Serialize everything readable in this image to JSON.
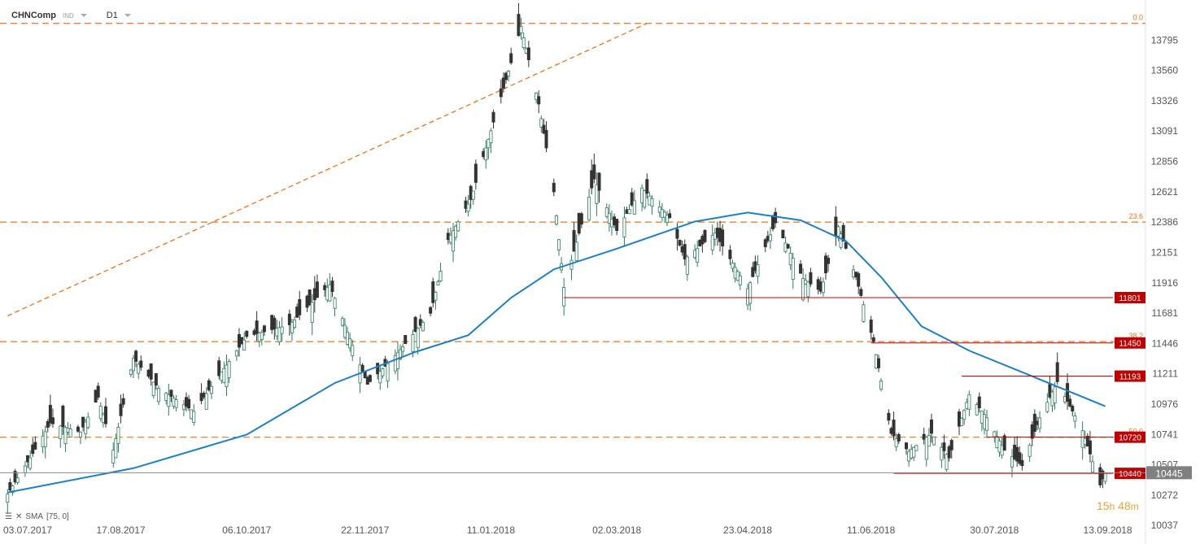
{
  "header": {
    "symbol": "CHNComp",
    "badge": "IND",
    "timeframe": "D1"
  },
  "indicator_legend": {
    "name": "SMA",
    "params": "[75, 0]"
  },
  "timer": {
    "hours": "15",
    "h_unit": "h",
    "minutes": "48",
    "m_unit": "m"
  },
  "colors": {
    "up_candle": "#2e7d5b",
    "down_candle": "#333333",
    "sma": "#1e7fc4",
    "fib": "#e8731f",
    "level_line": "#c00000",
    "level_label_bg": "#c00000",
    "price_label_bg": "#808080"
  },
  "chart_data": {
    "type": "candlestick",
    "title": "CHNComp",
    "timeframe": "D1",
    "ylim": [
      10000,
      13980
    ],
    "y_ticks": [
      13795,
      13560,
      13326,
      13091,
      12856,
      12621,
      12386,
      12151,
      11916,
      11681,
      11446,
      11211,
      10976,
      10741,
      10507,
      10272,
      10037
    ],
    "x_ticks": [
      "03.07.2017",
      "17.08.2017",
      "06.10.2017",
      "22.11.2017",
      "11.01.2018",
      "02.03.2018",
      "23.04.2018",
      "11.06.2018",
      "30.07.2018",
      "13.09.2018"
    ],
    "current_price": 10445,
    "candle_path": [
      {
        "x": "2017-07-03",
        "y": 10280
      },
      {
        "x": "2017-07-12",
        "y": 10560
      },
      {
        "x": "2017-07-20",
        "y": 10830
      },
      {
        "x": "2017-08-01",
        "y": 10760
      },
      {
        "x": "2017-08-08",
        "y": 11030
      },
      {
        "x": "2017-08-14",
        "y": 10620
      },
      {
        "x": "2017-08-22",
        "y": 11330
      },
      {
        "x": "2017-09-01",
        "y": 11100
      },
      {
        "x": "2017-09-15",
        "y": 10920
      },
      {
        "x": "2017-10-06",
        "y": 11500
      },
      {
        "x": "2017-10-23",
        "y": 11590
      },
      {
        "x": "2017-11-08",
        "y": 11900
      },
      {
        "x": "2017-11-17",
        "y": 11430
      },
      {
        "x": "2017-11-23",
        "y": 11130
      },
      {
        "x": "2017-12-04",
        "y": 11350
      },
      {
        "x": "2017-12-18",
        "y": 11680
      },
      {
        "x": "2017-12-25",
        "y": 12250
      },
      {
        "x": "2018-01-03",
        "y": 12560
      },
      {
        "x": "2018-01-12",
        "y": 13160
      },
      {
        "x": "2018-01-19",
        "y": 13620
      },
      {
        "x": "2018-01-23",
        "y": 13900
      },
      {
        "x": "2018-01-30",
        "y": 13300
      },
      {
        "x": "2018-02-05",
        "y": 12620
      },
      {
        "x": "2018-02-09",
        "y": 11880
      },
      {
        "x": "2018-02-21",
        "y": 12720
      },
      {
        "x": "2018-03-02",
        "y": 12320
      },
      {
        "x": "2018-03-12",
        "y": 12650
      },
      {
        "x": "2018-03-23",
        "y": 12420
      },
      {
        "x": "2018-03-29",
        "y": 12100
      },
      {
        "x": "2018-04-10",
        "y": 12300
      },
      {
        "x": "2018-04-23",
        "y": 11870
      },
      {
        "x": "2018-05-04",
        "y": 12380
      },
      {
        "x": "2018-05-15",
        "y": 11950
      },
      {
        "x": "2018-05-22",
        "y": 11850
      },
      {
        "x": "2018-05-29",
        "y": 12350
      },
      {
        "x": "2018-06-05",
        "y": 11960
      },
      {
        "x": "2018-06-12",
        "y": 11460
      },
      {
        "x": "2018-06-19",
        "y": 10750
      },
      {
        "x": "2018-06-26",
        "y": 10610
      },
      {
        "x": "2018-07-05",
        "y": 10750
      },
      {
        "x": "2018-07-12",
        "y": 10560
      },
      {
        "x": "2018-07-20",
        "y": 11050
      },
      {
        "x": "2018-07-27",
        "y": 10870
      },
      {
        "x": "2018-08-03",
        "y": 10620
      },
      {
        "x": "2018-08-10",
        "y": 10500
      },
      {
        "x": "2018-08-17",
        "y": 10870
      },
      {
        "x": "2018-08-24",
        "y": 11150
      },
      {
        "x": "2018-09-03",
        "y": 10770
      },
      {
        "x": "2018-09-10",
        "y": 10350
      },
      {
        "x": "2018-09-12",
        "y": 10445
      }
    ],
    "sma_75": [
      {
        "x": "2017-07-03",
        "y": 10292
      },
      {
        "x": "2017-08-22",
        "y": 10480
      },
      {
        "x": "2017-10-06",
        "y": 10740
      },
      {
        "x": "2017-11-10",
        "y": 11140
      },
      {
        "x": "2017-12-12",
        "y": 11380
      },
      {
        "x": "2018-01-02",
        "y": 11510
      },
      {
        "x": "2018-01-19",
        "y": 11800
      },
      {
        "x": "2018-02-05",
        "y": 12020
      },
      {
        "x": "2018-03-02",
        "y": 12180
      },
      {
        "x": "2018-04-02",
        "y": 12390
      },
      {
        "x": "2018-04-23",
        "y": 12460
      },
      {
        "x": "2018-05-14",
        "y": 12400
      },
      {
        "x": "2018-06-01",
        "y": 12240
      },
      {
        "x": "2018-06-15",
        "y": 11960
      },
      {
        "x": "2018-07-01",
        "y": 11580
      },
      {
        "x": "2018-07-20",
        "y": 11390
      },
      {
        "x": "2018-08-13",
        "y": 11200
      },
      {
        "x": "2018-09-12",
        "y": 10960
      }
    ],
    "fibonacci": [
      {
        "level": "0.0",
        "price": 13925
      },
      {
        "level": "23.6",
        "price": 12386
      },
      {
        "level": "38.2",
        "price": 11460
      },
      {
        "level": "50.0",
        "price": 10720
      }
    ],
    "fib_trendline": [
      {
        "x": "2017-07-03",
        "y": 11660
      },
      {
        "x": "2018-03-14",
        "y": 13925
      }
    ],
    "horizontal_levels": [
      {
        "label": "11801",
        "price": 11801,
        "from": "2018-02-09"
      },
      {
        "label": "11450",
        "price": 11450,
        "from": "2018-06-11"
      },
      {
        "label": "11193",
        "price": 11193,
        "from": "2018-07-17"
      },
      {
        "label": "10720",
        "price": 10720,
        "from": "2018-07-27"
      },
      {
        "label": "10440",
        "price": 10440,
        "from": "2018-06-20"
      }
    ]
  }
}
